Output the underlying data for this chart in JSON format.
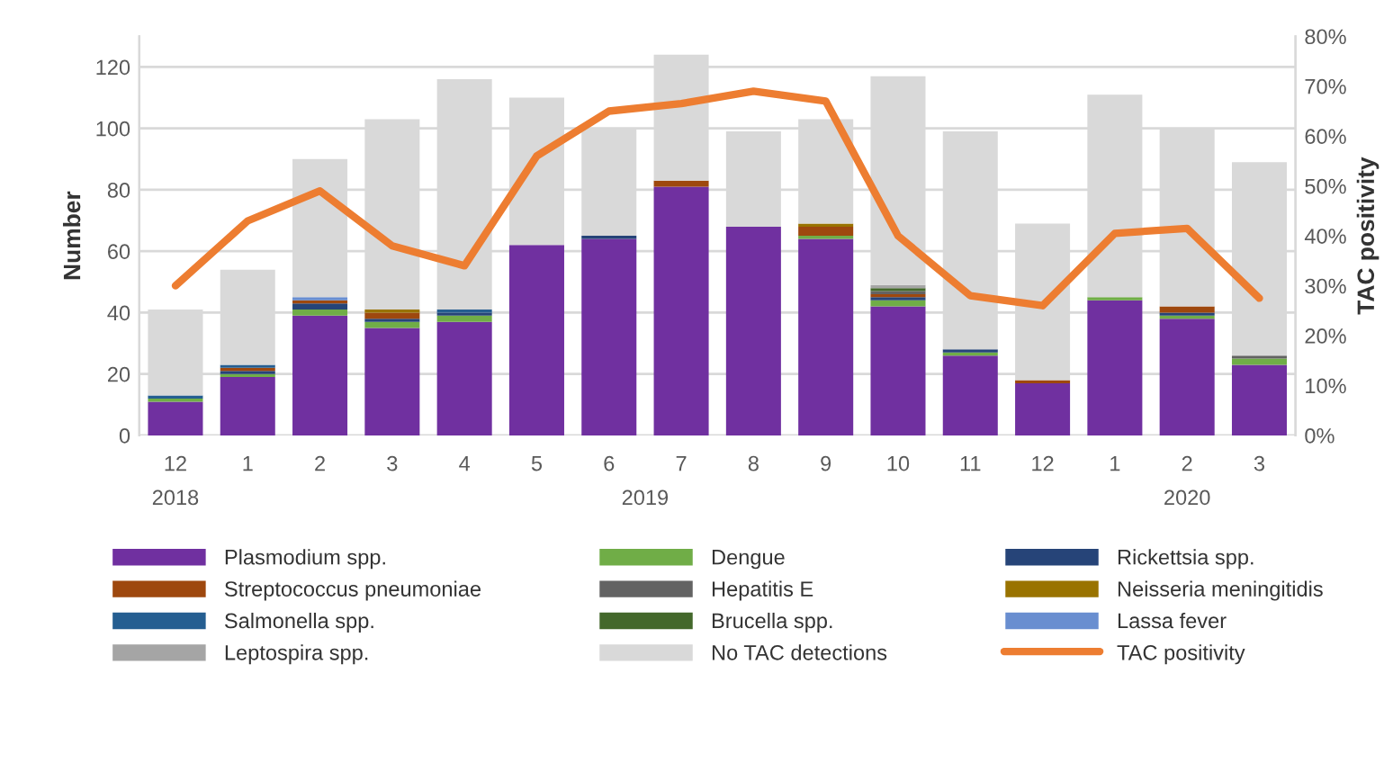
{
  "chart_data": {
    "type": "bar",
    "stacked": true,
    "categories": [
      "12",
      "1",
      "2",
      "3",
      "4",
      "5",
      "6",
      "7",
      "8",
      "9",
      "10",
      "11",
      "12",
      "1",
      "2",
      "3"
    ],
    "series": [
      {
        "name": "Plasmodium spp.",
        "color": "#7030a0",
        "values": [
          11,
          19,
          39,
          35,
          37,
          62,
          64,
          81,
          68,
          64,
          42,
          26,
          17,
          44,
          38,
          23
        ]
      },
      {
        "name": "Dengue",
        "color": "#70ad47",
        "values": [
          1,
          1,
          2,
          2,
          2,
          0,
          0,
          0,
          0,
          1,
          2,
          1,
          0,
          1,
          1,
          2
        ]
      },
      {
        "name": "Rickettsia spp.",
        "color": "#264478",
        "values": [
          0,
          1,
          2,
          1,
          1,
          0,
          1,
          0,
          0,
          0,
          1,
          1,
          0,
          0,
          1,
          0
        ]
      },
      {
        "name": "Streptococcus pneumoniae",
        "color": "#9e480e",
        "values": [
          0,
          1,
          1,
          2,
          0,
          0,
          0,
          2,
          0,
          3,
          1,
          0,
          1,
          0,
          2,
          0
        ]
      },
      {
        "name": "Hepatitis E",
        "color": "#636363",
        "values": [
          0,
          0,
          0,
          0,
          0,
          0,
          0,
          0,
          0,
          0,
          1,
          0,
          0,
          0,
          0,
          1
        ]
      },
      {
        "name": "Neisseria meningitidis",
        "color": "#997300",
        "values": [
          0,
          0,
          0,
          1,
          0,
          0,
          0,
          0,
          0,
          1,
          0,
          0,
          0,
          0,
          0,
          0
        ]
      },
      {
        "name": "Salmonella spp.",
        "color": "#255e91",
        "values": [
          1,
          1,
          0,
          0,
          1,
          0,
          0,
          0,
          0,
          0,
          0,
          0,
          0,
          0,
          0,
          0
        ]
      },
      {
        "name": "Brucella spp.",
        "color": "#43682b",
        "values": [
          0,
          0,
          0,
          0,
          0,
          0,
          0,
          0,
          0,
          0,
          1,
          0,
          0,
          0,
          0,
          0
        ]
      },
      {
        "name": "Lassa fever",
        "color": "#698ed0",
        "values": [
          0,
          0,
          1,
          0,
          0,
          0,
          0,
          0,
          0,
          0,
          0,
          0,
          0,
          0,
          0,
          0
        ]
      },
      {
        "name": "Leptospira spp.",
        "color": "#a5a5a5",
        "values": [
          0,
          0,
          0,
          0,
          0,
          0,
          0,
          0,
          0,
          0,
          1,
          0,
          0,
          0,
          0,
          0
        ]
      },
      {
        "name": "No TAC detections",
        "color": "#d9d9d9",
        "values": [
          28,
          31,
          45,
          62,
          75,
          48,
          35,
          41,
          31,
          34,
          68,
          71,
          51,
          66,
          58,
          63
        ]
      },
      {
        "name": "TAC positivity",
        "color": "#ed7d31",
        "type": "line",
        "axis": "y2",
        "values": [
          30,
          43,
          49,
          38,
          34,
          56,
          65,
          66.5,
          69,
          67,
          40,
          28,
          26,
          40.5,
          41.5,
          27.5
        ]
      }
    ],
    "ylabel": "Number",
    "y2label": "TAC positivity",
    "ylim": [
      0,
      130
    ],
    "yticks": [
      0,
      20,
      40,
      60,
      80,
      100,
      120
    ],
    "y2lim": [
      0,
      80
    ],
    "y2ticks": [
      {
        "value": 0,
        "label": "0%"
      },
      {
        "value": 10,
        "label": "10%"
      },
      {
        "value": 20,
        "label": "20%"
      },
      {
        "value": 30,
        "label": "30%"
      },
      {
        "value": 40,
        "label": "40%"
      },
      {
        "value": 50,
        "label": "50%"
      },
      {
        "value": 60,
        "label": "60%"
      },
      {
        "value": 70,
        "label": "70%"
      },
      {
        "value": 80,
        "label": "80%"
      }
    ],
    "annotations": [
      "2018",
      "2019",
      "2020"
    ],
    "grid": "y",
    "legend": "bottom"
  }
}
